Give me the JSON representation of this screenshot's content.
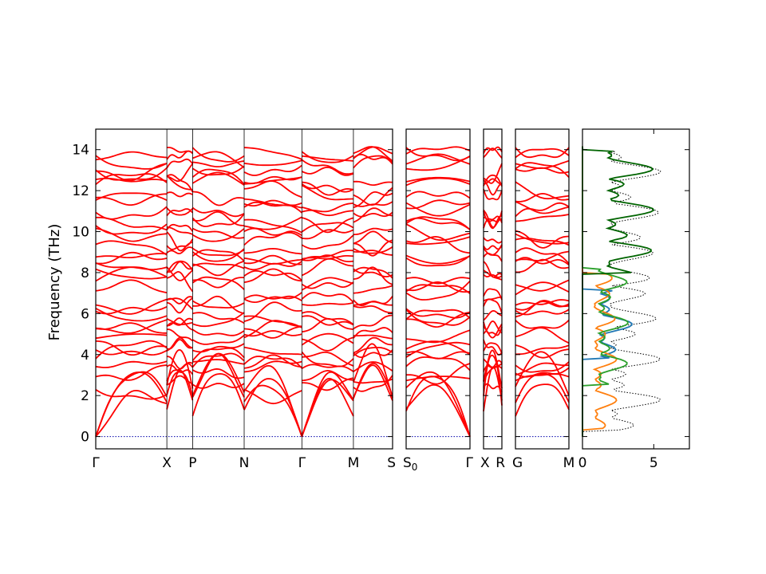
{
  "chart_data": {
    "type": "line",
    "ylabel": "Frequency (THz)",
    "ylim": [
      -0.6,
      15
    ],
    "yticks": [
      0,
      2,
      4,
      6,
      8,
      10,
      12,
      14
    ],
    "colors": {
      "bands": "#ff0000",
      "zero": "#0000aa",
      "frame": "#000000"
    },
    "panels": [
      {
        "kpoints": [
          {
            "label": "Γ",
            "x": 0
          },
          {
            "label": "X",
            "x": 0.345
          },
          {
            "label": "P",
            "x": 0.47
          },
          {
            "label": "N",
            "x": 0.72
          },
          {
            "label": "Γ",
            "x": 1.0
          },
          {
            "label": "M",
            "x": 1.25
          },
          {
            "label": "S",
            "x": 1.44
          }
        ],
        "xlim": [
          0,
          1.44
        ]
      },
      {
        "kpoints": [
          {
            "label": "S",
            "x": 0
          },
          {
            "label": "Γ",
            "x": 1
          }
        ],
        "start_label": "S0",
        "xlim": [
          0,
          1
        ]
      },
      {
        "kpoints": [
          {
            "label": "X",
            "x": 0
          },
          {
            "label": "R",
            "x": 1
          }
        ],
        "xlim": [
          0,
          1
        ]
      },
      {
        "kpoints": [
          {
            "label": "G",
            "x": 0
          },
          {
            "label": "M",
            "x": 1
          }
        ],
        "xlim": [
          0,
          1
        ]
      }
    ],
    "dos": {
      "xlim": [
        0,
        7.5
      ],
      "xticks": [
        0,
        5
      ],
      "series": [
        {
          "color": "#1f77b4"
        },
        {
          "color": "#ff7f0e"
        },
        {
          "color": "#2ca02c"
        },
        {
          "color": "#006400"
        },
        {
          "color": "#000000"
        }
      ]
    }
  }
}
